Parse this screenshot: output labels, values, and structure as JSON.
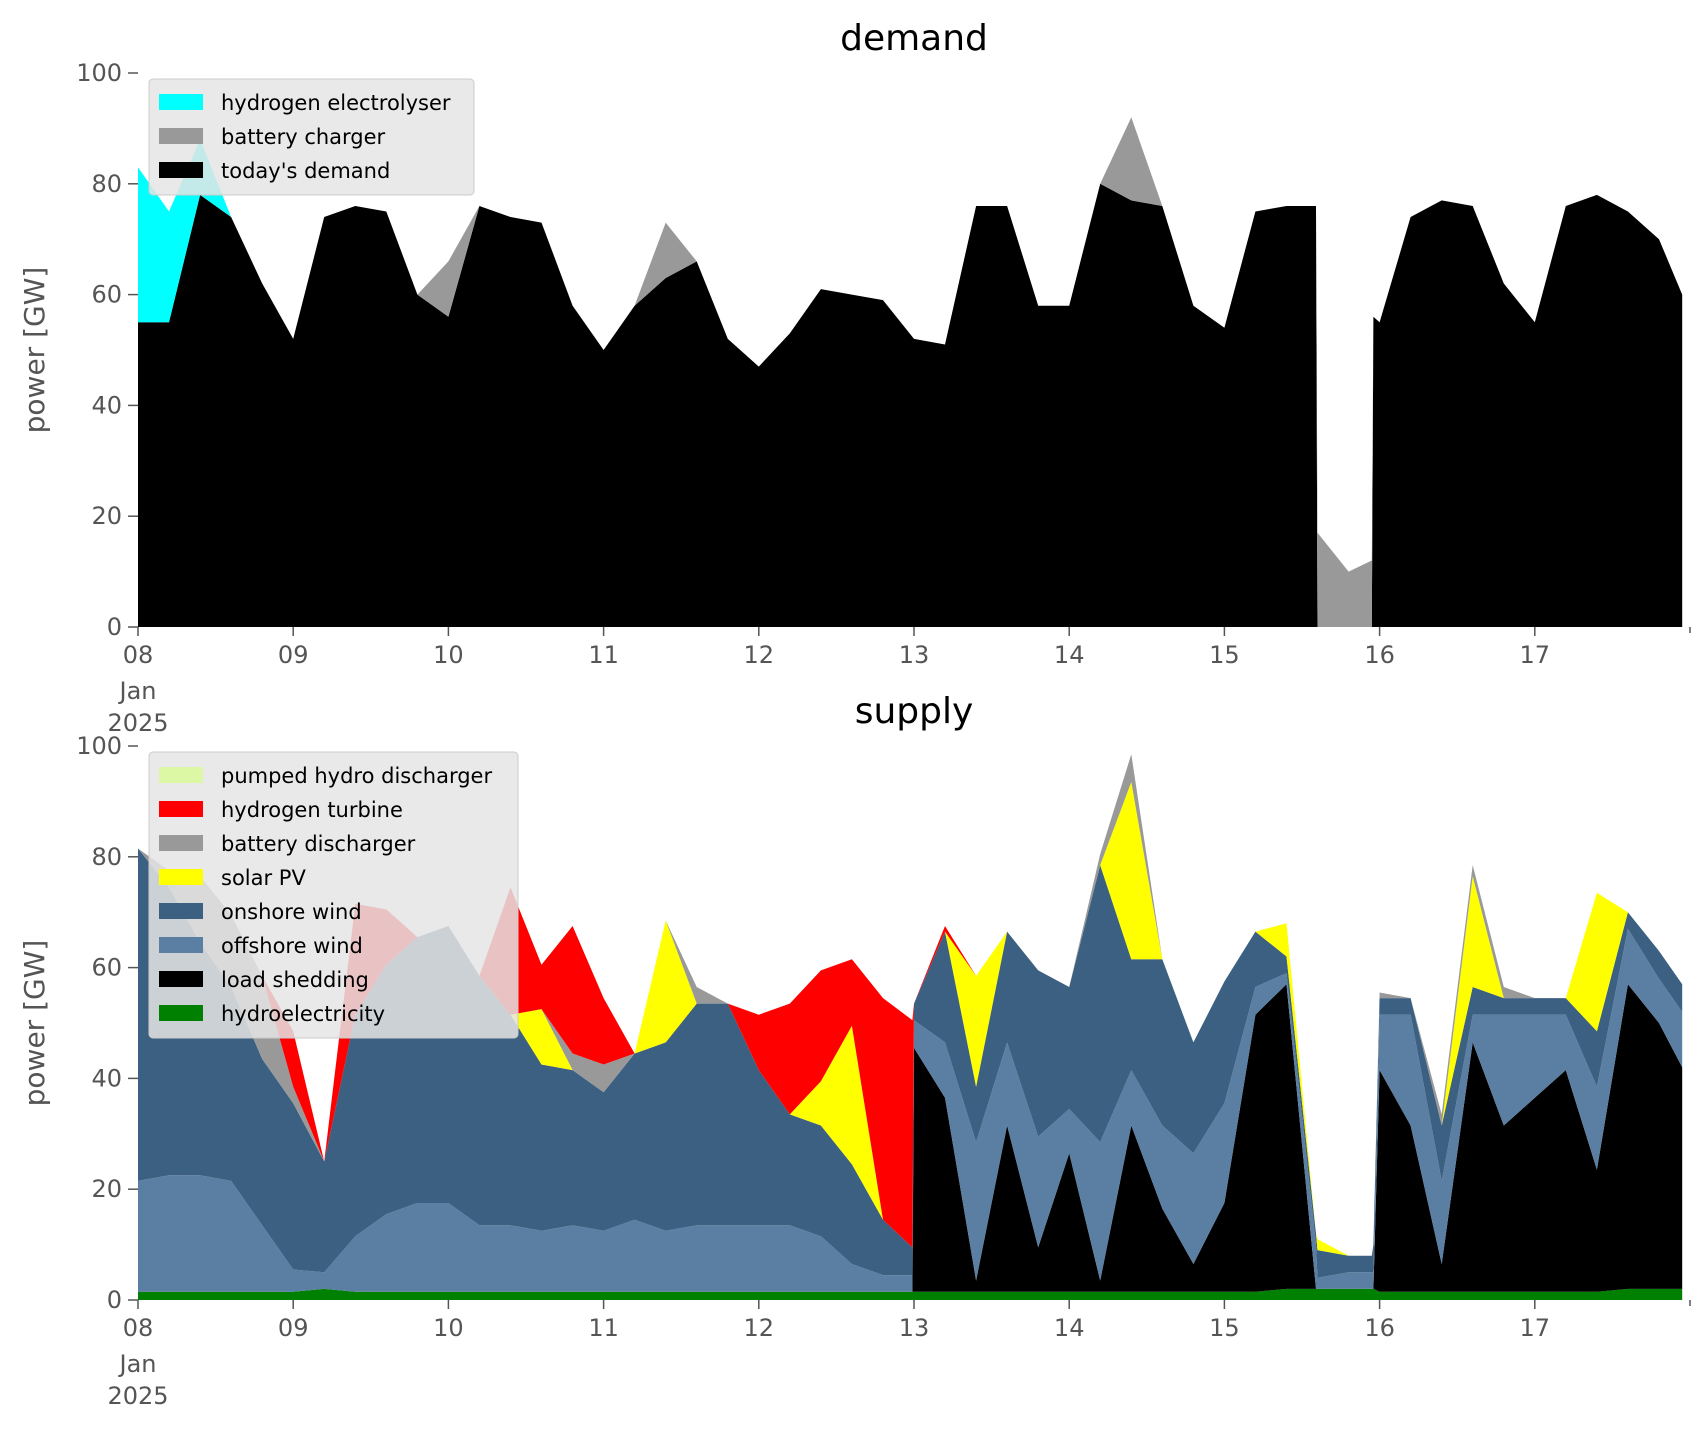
{
  "chart_data": [
    {
      "type": "area",
      "stacked": true,
      "title": "demand",
      "xlabel": "",
      "ylabel": "power [GW]",
      "ylim": [
        0,
        100
      ],
      "xlim": [
        0,
        10
      ],
      "x_ticks": [
        {
          "x": 0,
          "label": "08",
          "sub": [
            "Jan",
            "2025"
          ]
        },
        {
          "x": 1,
          "label": "09"
        },
        {
          "x": 2,
          "label": "10"
        },
        {
          "x": 3,
          "label": "11"
        },
        {
          "x": 4,
          "label": "12"
        },
        {
          "x": 5,
          "label": "13"
        },
        {
          "x": 6,
          "label": "14"
        },
        {
          "x": 7,
          "label": "15"
        },
        {
          "x": 8,
          "label": "16"
        },
        {
          "x": 9,
          "label": "17"
        }
      ],
      "y_ticks": [
        0,
        20,
        40,
        60,
        80,
        100
      ],
      "legend": "top-left",
      "legend_entries": [
        "hydrogen electrolyser",
        "battery charger",
        "today's demand"
      ],
      "x": [
        0,
        0.2,
        0.4,
        0.6,
        0.8,
        1,
        1.2,
        1.4,
        1.6,
        1.8,
        2,
        2.2,
        2.4,
        2.6,
        2.8,
        3,
        3.2,
        3.4,
        3.6,
        3.8,
        4,
        4.2,
        4.4,
        4.6,
        4.8,
        5,
        5.2,
        5.4,
        5.6,
        5.8,
        6,
        6.2,
        6.4,
        6.6,
        6.8,
        7,
        7.2,
        7.4,
        7.59,
        7.6,
        7.8,
        7.95,
        7.96,
        8,
        8.2,
        8.4,
        8.6,
        8.8,
        9,
        9.2,
        9.4,
        9.6,
        9.8,
        9.95
      ],
      "series": [
        {
          "name": "today's demand",
          "color": "#000000",
          "values": [
            55,
            55,
            78,
            74,
            62,
            52,
            74,
            76,
            75,
            60,
            56,
            76,
            74,
            73,
            58,
            50,
            58,
            63,
            66,
            52,
            47,
            53,
            61,
            60,
            59,
            52,
            51,
            76,
            76,
            58,
            58,
            80,
            77,
            76,
            58,
            54,
            75,
            76,
            76,
            0,
            0,
            0,
            56,
            55,
            74,
            77,
            76,
            62,
            55,
            76,
            78,
            75,
            70,
            60
          ]
        },
        {
          "name": "battery charger",
          "color": "#999999",
          "values": [
            0,
            0,
            0,
            0,
            0,
            0,
            0,
            0,
            0,
            0,
            10,
            0,
            0,
            0,
            0,
            0,
            0,
            10,
            0,
            0,
            0,
            0,
            0,
            0,
            0,
            0,
            0,
            0,
            0,
            0,
            0,
            0,
            15,
            0,
            0,
            0,
            0,
            0,
            0,
            17,
            10,
            12,
            0,
            0,
            0,
            0,
            0,
            0,
            0,
            0,
            0,
            0,
            0,
            0
          ]
        },
        {
          "name": "hydrogen electrolyser",
          "color": "#00ffff",
          "values": [
            28,
            20,
            10,
            0,
            0,
            0,
            0,
            0,
            0,
            0,
            0,
            0,
            0,
            0,
            0,
            0,
            0,
            0,
            0,
            0,
            0,
            0,
            0,
            0,
            0,
            0,
            0,
            0,
            0,
            0,
            0,
            0,
            0,
            0,
            0,
            0,
            0,
            0,
            0,
            0,
            0,
            0,
            0,
            0,
            0,
            0,
            0,
            0,
            0,
            0,
            0,
            0,
            0,
            0
          ]
        }
      ]
    },
    {
      "type": "area",
      "stacked": true,
      "title": "supply",
      "xlabel": "",
      "ylabel": "power [GW]",
      "ylim": [
        0,
        100
      ],
      "xlim": [
        0,
        10
      ],
      "x_ticks": [
        {
          "x": 0,
          "label": "08",
          "sub": [
            "Jan",
            "2025"
          ]
        },
        {
          "x": 1,
          "label": "09"
        },
        {
          "x": 2,
          "label": "10"
        },
        {
          "x": 3,
          "label": "11"
        },
        {
          "x": 4,
          "label": "12"
        },
        {
          "x": 5,
          "label": "13"
        },
        {
          "x": 6,
          "label": "14"
        },
        {
          "x": 7,
          "label": "15"
        },
        {
          "x": 8,
          "label": "16"
        },
        {
          "x": 9,
          "label": "17"
        }
      ],
      "y_ticks": [
        0,
        20,
        40,
        60,
        80,
        100
      ],
      "legend": "top-left",
      "legend_entries": [
        "pumped hydro discharger",
        "hydrogen turbine",
        "battery discharger",
        "solar PV",
        "onshore wind",
        "offshore wind",
        "load shedding",
        "hydroelectricity"
      ],
      "x": [
        0,
        0.2,
        0.4,
        0.6,
        0.8,
        1,
        1.2,
        1.4,
        1.6,
        1.8,
        2,
        2.2,
        2.4,
        2.6,
        2.8,
        3,
        3.2,
        3.4,
        3.6,
        3.8,
        4,
        4.2,
        4.4,
        4.6,
        4.8,
        4.99,
        5,
        5.2,
        5.4,
        5.6,
        5.8,
        6,
        6.2,
        6.4,
        6.6,
        6.8,
        7,
        7.2,
        7.4,
        7.59,
        7.6,
        7.8,
        7.95,
        7.96,
        8,
        8.2,
        8.4,
        8.6,
        8.8,
        9,
        9.2,
        9.4,
        9.6,
        9.8,
        9.95
      ],
      "series": [
        {
          "name": "hydroelectricity",
          "color": "#008000",
          "values": [
            1.5,
            1.5,
            1.5,
            1.5,
            1.5,
            1.5,
            2,
            1.5,
            1.5,
            1.5,
            1.5,
            1.5,
            1.5,
            1.5,
            1.5,
            1.5,
            1.5,
            1.5,
            1.5,
            1.5,
            1.5,
            1.5,
            1.5,
            1.5,
            1.5,
            1.5,
            1.5,
            1.5,
            1.5,
            1.5,
            1.5,
            1.5,
            1.5,
            1.5,
            1.5,
            1.5,
            1.5,
            1.5,
            2,
            2,
            2,
            2,
            2,
            2,
            1.5,
            1.5,
            1.5,
            1.5,
            1.5,
            1.5,
            1.5,
            1.5,
            2,
            2,
            2
          ]
        },
        {
          "name": "load shedding",
          "color": "#000000",
          "values": [
            0,
            0,
            0,
            0,
            0,
            0,
            0,
            0,
            0,
            0,
            0,
            0,
            0,
            0,
            0,
            0,
            0,
            0,
            0,
            0,
            0,
            0,
            0,
            0,
            0,
            0,
            44,
            35,
            2,
            30,
            8,
            25,
            2,
            30,
            15,
            5,
            16,
            50,
            55,
            0,
            0,
            0,
            0,
            0,
            40,
            30,
            5,
            45,
            30,
            35,
            40,
            22,
            55,
            48,
            40
          ]
        },
        {
          "name": "offshore wind",
          "color": "#5b7fa3",
          "values": [
            20,
            21,
            21,
            20,
            12,
            4,
            3,
            10,
            14,
            16,
            16,
            12,
            12,
            11,
            12,
            11,
            13,
            11,
            12,
            12,
            12,
            12,
            10,
            5,
            3,
            3,
            5,
            10,
            25,
            15,
            20,
            8,
            25,
            10,
            15,
            20,
            18,
            5,
            2,
            8,
            2,
            3,
            3,
            3,
            10,
            20,
            15,
            5,
            20,
            15,
            10,
            15,
            10,
            8,
            10
          ]
        },
        {
          "name": "onshore wind",
          "color": "#3c6081",
          "values": [
            60,
            52,
            42,
            35,
            30,
            30,
            20,
            40,
            45,
            48,
            50,
            45,
            38,
            30,
            28,
            25,
            30,
            34,
            40,
            40,
            28,
            20,
            20,
            18,
            10,
            5,
            3,
            20,
            10,
            20,
            30,
            22,
            50,
            20,
            30,
            20,
            22,
            10,
            3,
            2,
            5,
            3,
            3,
            5,
            3,
            3,
            10,
            5,
            3,
            3,
            3,
            10,
            3,
            5,
            5
          ]
        },
        {
          "name": "solar PV",
          "color": "#ffff00",
          "values": [
            0,
            0,
            0,
            0,
            0,
            0,
            0,
            0,
            0,
            0,
            0,
            0,
            0,
            10,
            0,
            0,
            0,
            22,
            0,
            0,
            0,
            0,
            8,
            25,
            0,
            0,
            0,
            0,
            20,
            0,
            0,
            0,
            0,
            32,
            0,
            0,
            0,
            0,
            6,
            0,
            2,
            0,
            0,
            0,
            0,
            0,
            0,
            20,
            0,
            0,
            0,
            25,
            0,
            0,
            0
          ]
        },
        {
          "name": "battery discharger",
          "color": "#999999",
          "values": [
            0,
            3,
            12,
            13,
            15,
            3,
            0,
            0,
            0,
            0,
            0,
            0,
            0,
            0,
            3,
            5,
            0,
            0,
            3,
            0,
            0,
            0,
            0,
            0,
            0,
            0,
            0,
            0,
            0,
            0,
            0,
            0,
            2,
            5,
            0,
            0,
            0,
            0,
            0,
            0,
            0,
            0,
            0,
            0,
            1,
            0,
            2,
            2,
            2,
            0,
            0,
            0,
            0,
            0,
            0
          ]
        },
        {
          "name": "hydrogen turbine",
          "color": "#ff0000",
          "values": [
            0,
            0,
            0,
            0,
            0,
            10,
            0,
            20,
            10,
            0,
            0,
            0,
            23,
            8,
            23,
            12,
            0,
            0,
            0,
            0,
            10,
            20,
            20,
            12,
            40,
            41,
            0,
            1,
            0,
            0,
            0,
            0,
            0,
            0,
            0,
            0,
            0,
            0,
            0,
            0,
            0,
            0,
            0,
            0,
            0,
            0,
            0,
            0,
            0,
            0,
            0,
            0,
            0,
            0,
            0
          ]
        },
        {
          "name": "pumped hydro discharger",
          "color": "#ddf8a5",
          "values": [
            0,
            0,
            0,
            0,
            0,
            0,
            0,
            0,
            0,
            0,
            0,
            0,
            0,
            0,
            0,
            0,
            0,
            0,
            0,
            0,
            0,
            0,
            0,
            0,
            0,
            0,
            0,
            0,
            0,
            0,
            0,
            0,
            0,
            0,
            0,
            0,
            0,
            0,
            0,
            0,
            0,
            0,
            0,
            0,
            0,
            0,
            0,
            0,
            0,
            0,
            0,
            0,
            0,
            0,
            0
          ]
        }
      ]
    }
  ]
}
